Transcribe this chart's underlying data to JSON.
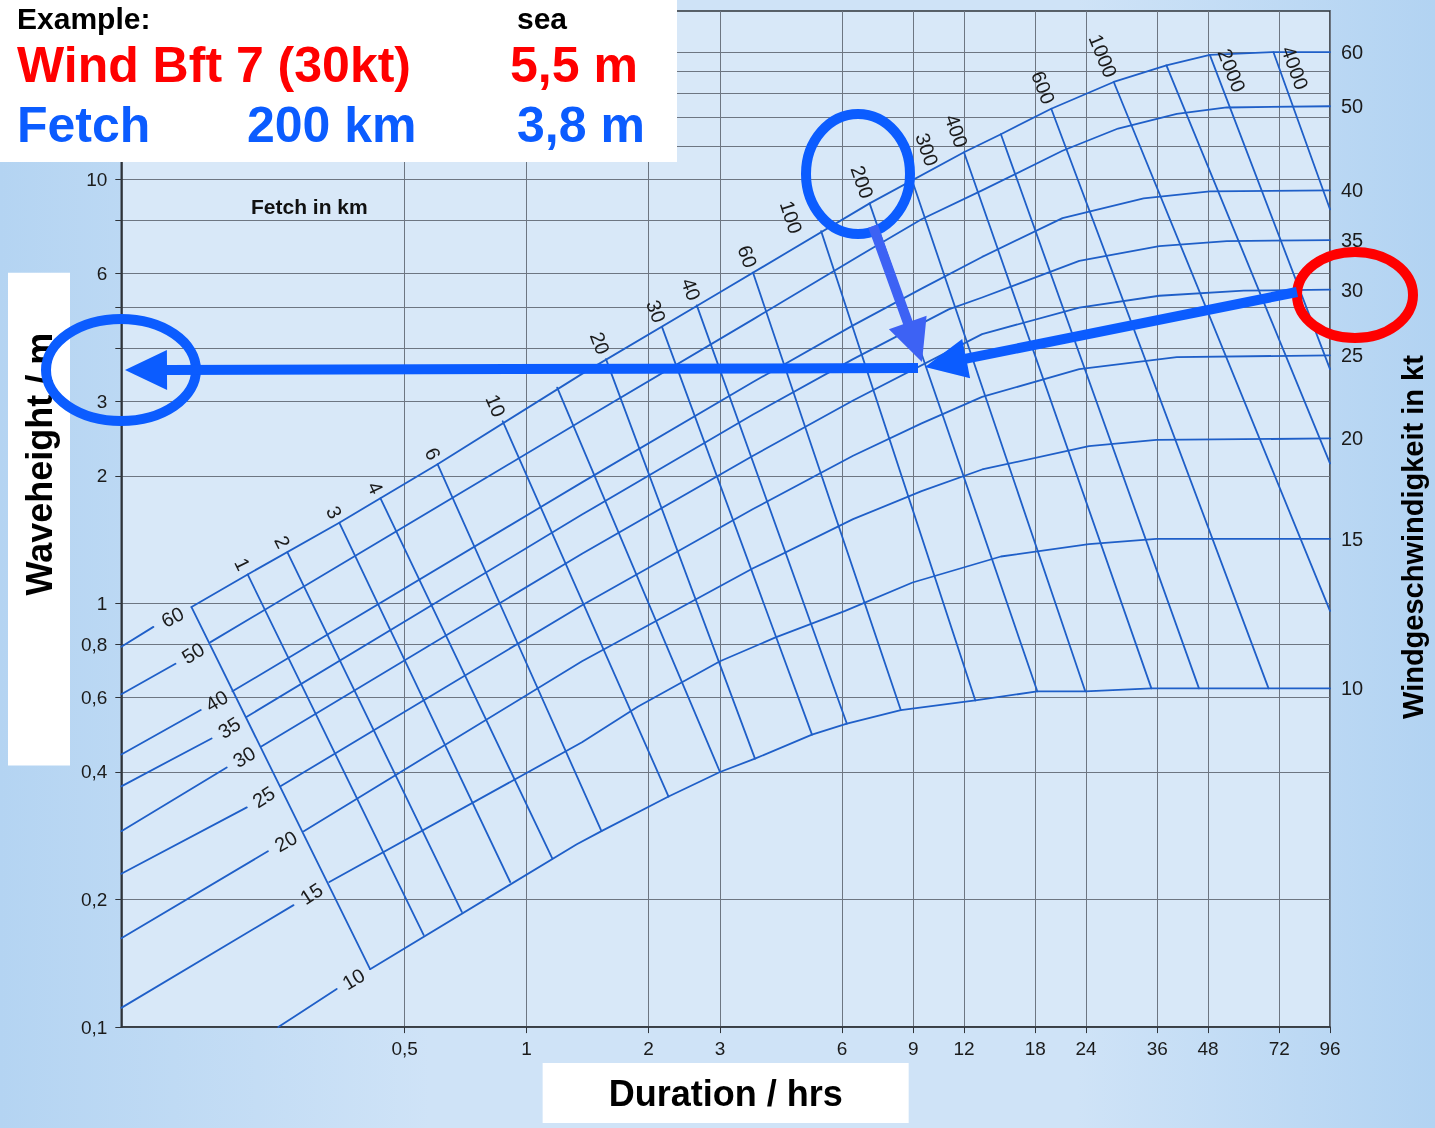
{
  "chart_data": {
    "type": "line",
    "xlabel": "Duration / hrs",
    "ylabel": "Waveheight / m",
    "y2label": "Windgeschwindigkeit in kt",
    "annotations": [
      "Example:",
      "sea",
      "Wind Bft 7 (30kt)",
      "5,5 m",
      "Fetch",
      "200 km",
      "3,8 m",
      "Fetch in km"
    ],
    "log": "xy",
    "grid": true,
    "legend": false,
    "marker": "none",
    "xlim": [
      0.1,
      96
    ],
    "xticks": [
      {
        "value": 0.5,
        "label": "0,5"
      },
      1,
      2,
      3,
      6,
      9,
      12,
      18,
      24,
      36,
      48,
      72,
      96
    ],
    "ylim": [
      0.1,
      25
    ],
    "yticks": [
      {
        "value": 0.1,
        "label": "0,1"
      },
      {
        "value": 0.2,
        "label": "0,2"
      },
      {
        "value": 0.4,
        "label": "0,4"
      },
      {
        "value": 0.6,
        "label": "0,6"
      },
      {
        "value": 0.8,
        "label": "0,8"
      },
      1,
      2,
      3,
      {
        "value": 4,
        "label": null
      },
      {
        "value": 5,
        "label": null
      },
      6,
      {
        "value": 8,
        "label": null
      },
      10,
      {
        "value": 12,
        "label": null
      },
      {
        "value": 14,
        "label": null
      },
      {
        "value": 16,
        "label": null
      },
      {
        "value": 18,
        "label": null
      },
      {
        "value": 20,
        "label": null
      }
    ],
    "series": [
      {
        "color": "#1f5fc8",
        "x": [
          0.149,
          0.411
        ],
        "values": [
          0.98,
          0.137
        ]
      },
      {
        "name": "1",
        "color": "#1f5fc8",
        "x": [
          0.205,
          0.557
        ],
        "values": [
          1.17,
          0.165
        ]
      },
      {
        "name": "2",
        "color": "#1f5fc8",
        "x": [
          0.257,
          0.692
        ],
        "values": [
          1.32,
          0.187
        ]
      },
      {
        "name": "3",
        "color": "#1f5fc8",
        "x": [
          0.345,
          0.911
        ],
        "values": [
          1.55,
          0.22
        ]
      },
      {
        "name": "4",
        "color": "#1f5fc8",
        "x": [
          0.436,
          1.157
        ],
        "values": [
          1.77,
          0.25
        ]
      },
      {
        "name": "6",
        "color": "#1f5fc8",
        "x": [
          0.603,
          1.53
        ],
        "values": [
          2.13,
          0.29
        ]
      },
      {
        "name": "10",
        "color": "#1f5fc8",
        "x": [
          0.873,
          2.24
        ],
        "values": [
          2.69,
          0.35
        ]
      },
      {
        "color": "#1f5fc8",
        "x": [
          1.19,
          3.0
        ],
        "values": [
          3.23,
          0.4
        ]
      },
      {
        "name": "20",
        "color": "#1f5fc8",
        "x": [
          1.57,
          3.66
        ],
        "values": [
          3.77,
          0.43
        ]
      },
      {
        "name": "30",
        "color": "#1f5fc8",
        "x": [
          2.16,
          5.06
        ],
        "values": [
          4.48,
          0.49
        ]
      },
      {
        "name": "40",
        "color": "#1f5fc8",
        "x": [
          2.63,
          6.17
        ],
        "values": [
          5.05,
          0.52
        ]
      },
      {
        "name": "60",
        "color": "#1f5fc8",
        "x": [
          3.62,
          8.38
        ],
        "values": [
          6.03,
          0.56
        ]
      },
      {
        "name": "100",
        "color": "#1f5fc8",
        "x": [
          5.33,
          12.8
        ],
        "values": [
          7.56,
          0.59
        ]
      },
      {
        "name": "200",
        "color": "#1f5fc8",
        "x": [
          7.02,
          10.8,
          18.2
        ],
        "values": [
          8.79,
          2.66,
          0.62
        ]
      },
      {
        "name": "300",
        "color": "#1f5fc8",
        "x": [
          8.91,
          23.9
        ],
        "values": [
          10.05,
          0.62
        ]
      },
      {
        "name": "400",
        "color": "#1f5fc8",
        "x": [
          12,
          34.8
        ],
        "values": [
          11.6,
          0.63
        ]
      },
      {
        "color": "#1f5fc8",
        "x": [
          14.8,
          45.6
        ],
        "values": [
          12.8,
          0.63
        ]
      },
      {
        "name": "600",
        "color": "#1f5fc8",
        "x": [
          19.7,
          67.7
        ],
        "values": [
          14.7,
          0.63
        ]
      },
      {
        "name": "1000",
        "color": "#1f5fc8",
        "x": [
          28.1,
          96
        ],
        "values": [
          17.0,
          0.96
        ]
      },
      {
        "color": "#1f5fc8",
        "x": [
          37.9,
          96
        ],
        "values": [
          18.6,
          2.14
        ]
      },
      {
        "name": "2000",
        "color": "#1f5fc8",
        "x": [
          48.5,
          96
        ],
        "values": [
          19.7,
          3.57
        ]
      },
      {
        "name": "4000",
        "color": "#1f5fc8",
        "x": [
          69.6,
          96
        ],
        "values": [
          20.0,
          8.51
        ]
      },
      {
        "name": "60",
        "color": "#1f5fc8",
        "x": [
          0.1,
          0.12,
          0.136,
          0.149,
          0.205,
          0.345,
          0.603,
          1.37,
          3.0,
          7.02,
          12,
          14.8,
          19.7,
          28.1,
          37.9,
          48.5,
          69.6,
          96
        ],
        "values": [
          0.79,
          0.88,
          null,
          0.98,
          1.17,
          1.55,
          2.13,
          3.48,
          5.42,
          8.79,
          11.6,
          12.8,
          14.7,
          17.0,
          18.6,
          19.7,
          20.0,
          20.0
        ]
      },
      {
        "name": "50",
        "color": "#1f5fc8",
        "x": [
          0.1,
          0.136,
          0.15,
          0.166,
          1.37,
          3.62,
          7.14,
          9.43,
          13.3,
          21.0,
          28.8,
          40.2,
          53.4,
          96
        ],
        "values": [
          0.61,
          0.72,
          null,
          0.81,
          2.7,
          4.68,
          6.9,
          8.06,
          9.43,
          11.7,
          13.2,
          14.3,
          14.8,
          14.9
        ]
      },
      {
        "name": "40",
        "color": "#1f5fc8",
        "x": [
          0.1,
          0.157,
          0.172,
          0.188,
          1.37,
          3.62,
          6.39,
          9.43,
          13.3,
          21.0,
          33.3,
          48.5,
          96
        ],
        "values": [
          0.44,
          0.56,
          null,
          0.62,
          1.93,
          3.33,
          4.53,
          5.53,
          6.57,
          8.11,
          9.03,
          9.38,
          9.43
        ]
      },
      {
        "name": "35",
        "color": "#1f5fc8",
        "x": [
          0.1,
          0.167,
          0.185,
          0.204,
          1.37,
          3.62,
          6.39,
          11,
          13.3,
          23.1,
          36.4,
          53.4,
          96
        ],
        "values": [
          0.37,
          0.48,
          null,
          0.54,
          1.62,
          2.79,
          3.77,
          4.94,
          5.27,
          6.43,
          6.97,
          7.16,
          7.2
        ]
      },
      {
        "name": "30",
        "color": "#1f5fc8",
        "x": [
          0.1,
          0.182,
          0.2,
          0.222,
          1.37,
          3.62,
          6.39,
          13.3,
          23.1,
          36.4,
          58.8,
          96
        ],
        "values": [
          0.29,
          0.41,
          null,
          0.46,
          1.31,
          2.23,
          3.01,
          4.32,
          4.99,
          5.32,
          5.47,
          5.5
        ]
      },
      {
        "name": "25",
        "color": "#1f5fc8",
        "x": [
          0.1,
          0.204,
          0.222,
          0.247,
          1.37,
          3.62,
          6.39,
          9.43,
          13.3,
          23.1,
          40.2,
          96
        ],
        "values": [
          0.23,
          0.33,
          null,
          0.37,
          0.99,
          1.67,
          2.23,
          2.66,
          3.07,
          3.57,
          3.81,
          3.85
        ]
      },
      {
        "name": "20",
        "color": "#1f5fc8",
        "x": [
          0.1,
          0.23,
          0.255,
          0.282,
          1.37,
          3.62,
          6.39,
          9.43,
          13.3,
          24.4,
          35.8,
          96
        ],
        "values": [
          0.162,
          0.26,
          null,
          0.29,
          0.73,
          1.21,
          1.58,
          1.84,
          2.07,
          2.35,
          2.43,
          2.45
        ]
      },
      {
        "name": "15",
        "color": "#1f5fc8",
        "x": [
          0.1,
          0.266,
          0.3,
          0.326,
          1.37,
          1.88,
          3.0,
          4.1,
          6.11,
          8.96,
          14.8,
          24.4,
          35.8,
          96
        ],
        "values": [
          0.111,
          0.194,
          null,
          0.22,
          0.47,
          0.57,
          0.73,
          0.83,
          0.96,
          1.12,
          1.29,
          1.38,
          1.42,
          1.42
        ]
      },
      {
        "name": "10",
        "color": "#1f5fc8",
        "x": [
          0.244,
          0.34,
          0.37,
          0.411,
          1.33,
          1.53,
          2.24,
          3.0,
          3.66,
          5.06,
          6.17,
          8.38,
          12.8,
          18.2,
          23.9,
          34.8,
          45.6,
          67.7,
          96
        ],
        "values": [
          0.1,
          0.123,
          null,
          0.137,
          0.27,
          0.29,
          0.35,
          0.4,
          0.43,
          0.49,
          0.52,
          0.56,
          0.59,
          0.62,
          0.62,
          0.63,
          0.63,
          0.63,
          0.63
        ]
      }
    ]
  }
}
